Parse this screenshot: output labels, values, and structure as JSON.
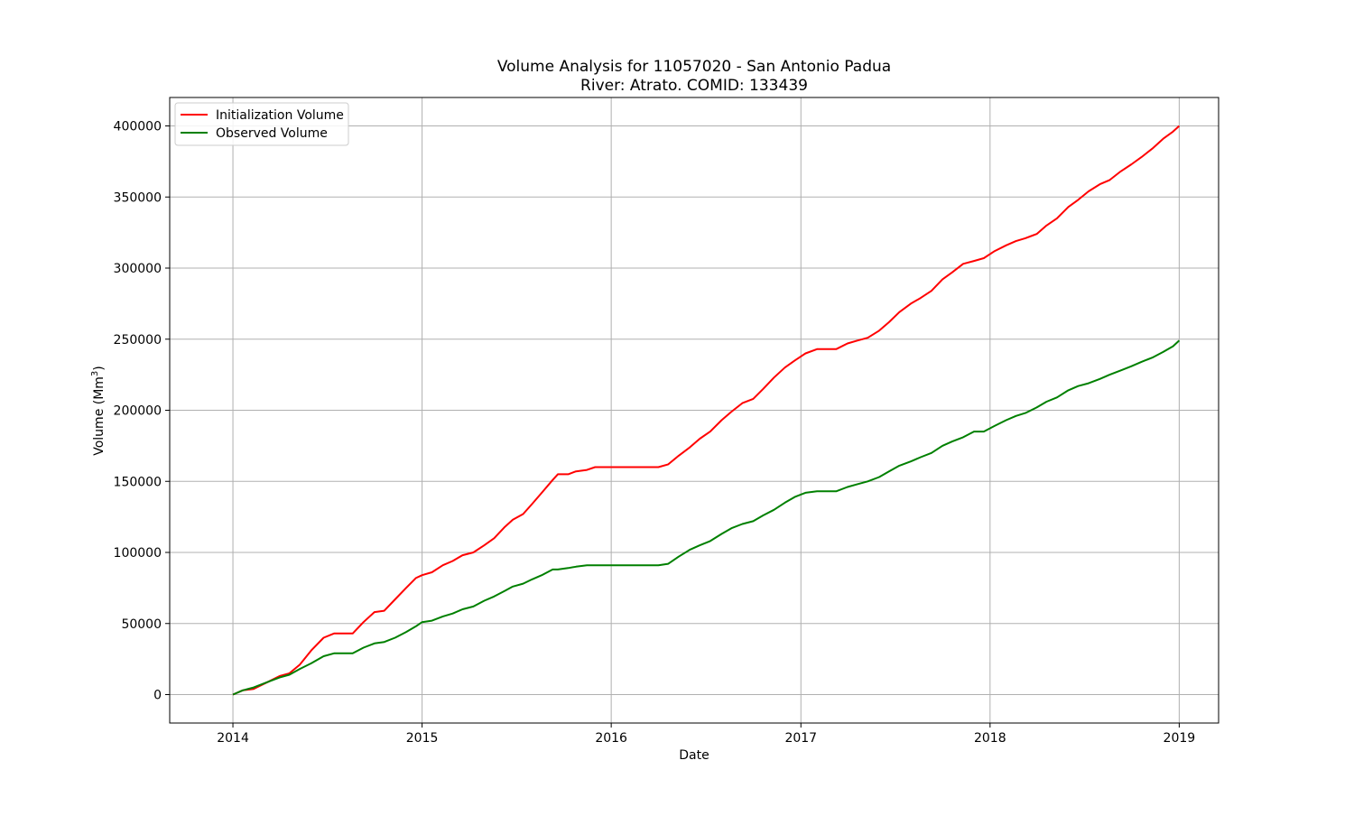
{
  "chart_data": {
    "type": "line",
    "title_line1": "Volume Analysis for 11057020 - San Antonio Padua",
    "title_line2": "River: Atrato. COMID: 133439",
    "xlabel": "Date",
    "ylabel_prefix": "Volume (Mm",
    "ylabel_sup": "3",
    "ylabel_suffix": ")",
    "xlim": [
      "2013-09-01",
      "2019-03-18"
    ],
    "ylim": [
      -20000,
      420000
    ],
    "x_tick_labels": [
      "2014",
      "2015",
      "2016",
      "2017",
      "2018",
      "2019"
    ],
    "x_tick_dates": [
      "2014-01-01",
      "2015-01-01",
      "2016-01-01",
      "2017-01-01",
      "2018-01-01",
      "2019-01-01"
    ],
    "y_tick_labels": [
      "0",
      "50000",
      "100000",
      "150000",
      "200000",
      "250000",
      "300000",
      "350000",
      "400000"
    ],
    "y_tick_values": [
      0,
      50000,
      100000,
      150000,
      200000,
      250000,
      300000,
      350000,
      400000
    ],
    "grid": true,
    "legend_position": "upper left",
    "series": [
      {
        "name": "Initialization Volume",
        "color": "#ff0000",
        "x": [
          "2014-01-01",
          "2014-01-20",
          "2014-02-10",
          "2014-03-10",
          "2014-04-01",
          "2014-04-20",
          "2014-05-10",
          "2014-06-01",
          "2014-06-25",
          "2014-07-15",
          "2014-08-01",
          "2014-08-20",
          "2014-09-10",
          "2014-10-01",
          "2014-10-20",
          "2014-11-10",
          "2014-12-01",
          "2014-12-20",
          "2015-01-01",
          "2015-01-20",
          "2015-02-10",
          "2015-03-01",
          "2015-03-20",
          "2015-04-10",
          "2015-05-01",
          "2015-05-20",
          "2015-06-10",
          "2015-06-25",
          "2015-07-15",
          "2015-08-01",
          "2015-08-20",
          "2015-09-10",
          "2015-09-20",
          "2015-10-10",
          "2015-10-25",
          "2015-11-15",
          "2015-12-01",
          "2016-01-01",
          "2016-02-01",
          "2016-03-01",
          "2016-04-01",
          "2016-04-20",
          "2016-05-10",
          "2016-06-01",
          "2016-06-20",
          "2016-07-10",
          "2016-08-01",
          "2016-08-20",
          "2016-09-10",
          "2016-10-01",
          "2016-10-20",
          "2016-11-10",
          "2016-12-01",
          "2016-12-20",
          "2017-01-10",
          "2017-02-01",
          "2017-03-10",
          "2017-04-01",
          "2017-04-20",
          "2017-05-10",
          "2017-06-01",
          "2017-06-20",
          "2017-07-10",
          "2017-08-01",
          "2017-08-20",
          "2017-09-10",
          "2017-10-01",
          "2017-10-20",
          "2017-11-10",
          "2017-12-01",
          "2017-12-20",
          "2018-01-10",
          "2018-02-01",
          "2018-02-20",
          "2018-03-10",
          "2018-04-01",
          "2018-04-20",
          "2018-05-10",
          "2018-06-01",
          "2018-06-20",
          "2018-07-10",
          "2018-08-01",
          "2018-08-20",
          "2018-09-10",
          "2018-10-01",
          "2018-10-20",
          "2018-11-10",
          "2018-12-01",
          "2018-12-20",
          "2019-01-01"
        ],
        "values": [
          0,
          3000,
          4000,
          9000,
          13000,
          15000,
          21000,
          31000,
          40000,
          43000,
          43000,
          43000,
          51000,
          58000,
          59000,
          67000,
          75000,
          82000,
          84000,
          86000,
          91000,
          94000,
          98000,
          100000,
          105000,
          110000,
          118000,
          123000,
          127000,
          134000,
          142000,
          151000,
          155000,
          155000,
          157000,
          158000,
          160000,
          160000,
          160000,
          160000,
          160000,
          162000,
          168000,
          174000,
          180000,
          185000,
          193000,
          199000,
          205000,
          208000,
          215000,
          223000,
          230000,
          235000,
          240000,
          243000,
          243000,
          247000,
          249000,
          251000,
          256000,
          262000,
          269000,
          275000,
          279000,
          284000,
          292000,
          297000,
          303000,
          305000,
          307000,
          312000,
          316000,
          319000,
          321000,
          324000,
          330000,
          335000,
          343000,
          348000,
          354000,
          359000,
          362000,
          368000,
          373000,
          378000,
          384000,
          391000,
          396000,
          400000
        ]
      },
      {
        "name": "Observed Volume",
        "color": "#008000",
        "x": [
          "2014-01-01",
          "2014-01-20",
          "2014-02-10",
          "2014-03-10",
          "2014-04-01",
          "2014-04-20",
          "2014-05-10",
          "2014-06-01",
          "2014-06-25",
          "2014-07-15",
          "2014-08-01",
          "2014-08-20",
          "2014-09-10",
          "2014-10-01",
          "2014-10-20",
          "2014-11-10",
          "2014-12-01",
          "2014-12-20",
          "2015-01-01",
          "2015-01-20",
          "2015-02-10",
          "2015-03-01",
          "2015-03-20",
          "2015-04-10",
          "2015-05-01",
          "2015-05-20",
          "2015-06-10",
          "2015-06-25",
          "2015-07-15",
          "2015-08-01",
          "2015-08-20",
          "2015-09-10",
          "2015-09-20",
          "2015-10-10",
          "2015-10-25",
          "2015-11-15",
          "2015-12-01",
          "2016-01-01",
          "2016-02-01",
          "2016-03-01",
          "2016-04-01",
          "2016-04-20",
          "2016-05-10",
          "2016-06-01",
          "2016-06-20",
          "2016-07-10",
          "2016-08-01",
          "2016-08-20",
          "2016-09-10",
          "2016-10-01",
          "2016-10-20",
          "2016-11-10",
          "2016-12-01",
          "2016-12-20",
          "2017-01-10",
          "2017-02-01",
          "2017-03-10",
          "2017-04-01",
          "2017-04-20",
          "2017-05-10",
          "2017-06-01",
          "2017-06-20",
          "2017-07-10",
          "2017-08-01",
          "2017-08-20",
          "2017-09-10",
          "2017-10-01",
          "2017-10-20",
          "2017-11-10",
          "2017-12-01",
          "2017-12-20",
          "2018-01-10",
          "2018-02-01",
          "2018-02-20",
          "2018-03-10",
          "2018-04-01",
          "2018-04-20",
          "2018-05-10",
          "2018-06-01",
          "2018-06-20",
          "2018-07-10",
          "2018-08-01",
          "2018-08-20",
          "2018-09-10",
          "2018-10-01",
          "2018-10-20",
          "2018-11-10",
          "2018-12-01",
          "2018-12-20",
          "2019-01-01"
        ],
        "values": [
          0,
          3000,
          5000,
          9000,
          12000,
          14000,
          18000,
          22000,
          27000,
          29000,
          29000,
          29000,
          33000,
          36000,
          37000,
          40000,
          44000,
          48000,
          51000,
          52000,
          55000,
          57000,
          60000,
          62000,
          66000,
          69000,
          73000,
          76000,
          78000,
          81000,
          84000,
          88000,
          88000,
          89000,
          90000,
          91000,
          91000,
          91000,
          91000,
          91000,
          91000,
          92000,
          97000,
          102000,
          105000,
          108000,
          113000,
          117000,
          120000,
          122000,
          126000,
          130000,
          135000,
          139000,
          142000,
          143000,
          143000,
          146000,
          148000,
          150000,
          153000,
          157000,
          161000,
          164000,
          167000,
          170000,
          175000,
          178000,
          181000,
          185000,
          185000,
          189000,
          193000,
          196000,
          198000,
          202000,
          206000,
          209000,
          214000,
          217000,
          219000,
          222000,
          225000,
          228000,
          231000,
          234000,
          237000,
          241000,
          245000,
          249000
        ]
      }
    ]
  }
}
